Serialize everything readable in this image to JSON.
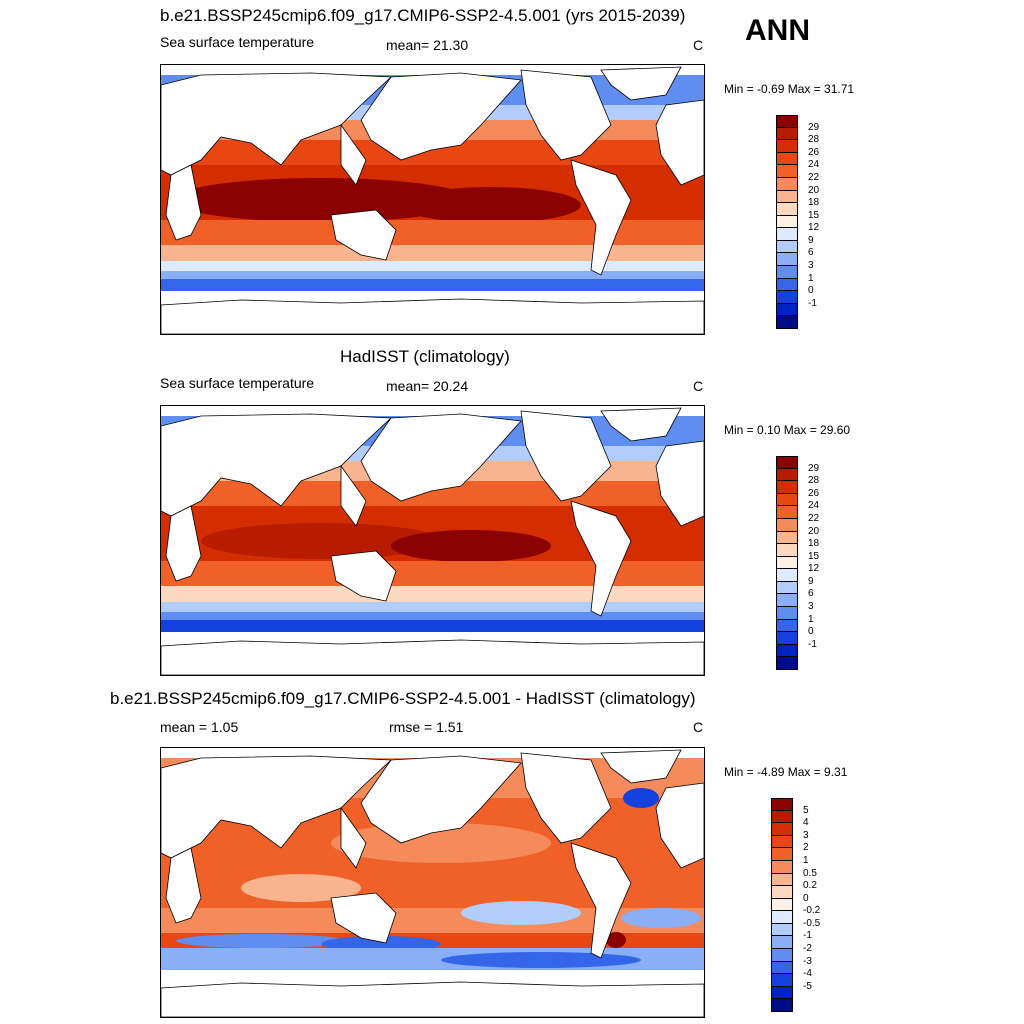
{
  "season": "ANN",
  "panels": [
    {
      "title": "b.e21.BSSP245cmip6.f09_g17.CMIP6-SSP2-4.5.001 (yrs 2015-2039)",
      "left_label": "Sea surface temperature",
      "center_label": "mean=  21.30",
      "units": "C",
      "minmax": "Min =  -0.69 Max =  31.71",
      "colorbar": {
        "labels": [
          "29",
          "28",
          "26",
          "24",
          "22",
          "20",
          "18",
          "15",
          "12",
          "9",
          "6",
          "3",
          "1",
          "0",
          "-1"
        ],
        "colors": [
          "#8b0000",
          "#b71c00",
          "#d42e00",
          "#e84612",
          "#f0612a",
          "#f58a5a",
          "#f8b48e",
          "#fbd8c0",
          "#fdf0e4",
          "#ddeaff",
          "#b3cdfb",
          "#8aaff6",
          "#5f8ef0",
          "#3566e9",
          "#1440dd",
          "#0022c4",
          "#000b8a"
        ]
      }
    },
    {
      "title": "HadISST (climatology)",
      "left_label": "Sea surface temperature",
      "center_label": "mean=  20.24",
      "units": "C",
      "minmax": "Min =   0.10 Max =  29.60",
      "colorbar": {
        "labels": [
          "29",
          "28",
          "26",
          "24",
          "22",
          "20",
          "18",
          "15",
          "12",
          "9",
          "6",
          "3",
          "1",
          "0",
          "-1"
        ],
        "colors": [
          "#8b0000",
          "#b71c00",
          "#d42e00",
          "#e84612",
          "#f0612a",
          "#f58a5a",
          "#f8b48e",
          "#fbd8c0",
          "#fdf0e4",
          "#ddeaff",
          "#b3cdfb",
          "#8aaff6",
          "#5f8ef0",
          "#3566e9",
          "#1440dd",
          "#0022c4",
          "#000b8a"
        ]
      }
    },
    {
      "title": "b.e21.BSSP245cmip6.f09_g17.CMIP6-SSP2-4.5.001 - HadISST (climatology)",
      "left_label": "mean =   1.05",
      "center_label": "rmse =   1.51",
      "units": "C",
      "minmax": "Min =  -4.89 Max =   9.31",
      "colorbar": {
        "labels": [
          "5",
          "4",
          "3",
          "2",
          "1",
          "0.5",
          "0.2",
          "0",
          "-0.2",
          "-0.5",
          "-1",
          "-2",
          "-3",
          "-4",
          "-5"
        ],
        "colors": [
          "#8b0000",
          "#b71c00",
          "#d42e00",
          "#e84612",
          "#f0612a",
          "#f58a5a",
          "#f8b48e",
          "#fbd8c0",
          "#fdf0e4",
          "#ddeaff",
          "#b3cdfb",
          "#8aaff6",
          "#5f8ef0",
          "#3566e9",
          "#1440dd",
          "#0022c4",
          "#000b8a"
        ]
      }
    }
  ]
}
